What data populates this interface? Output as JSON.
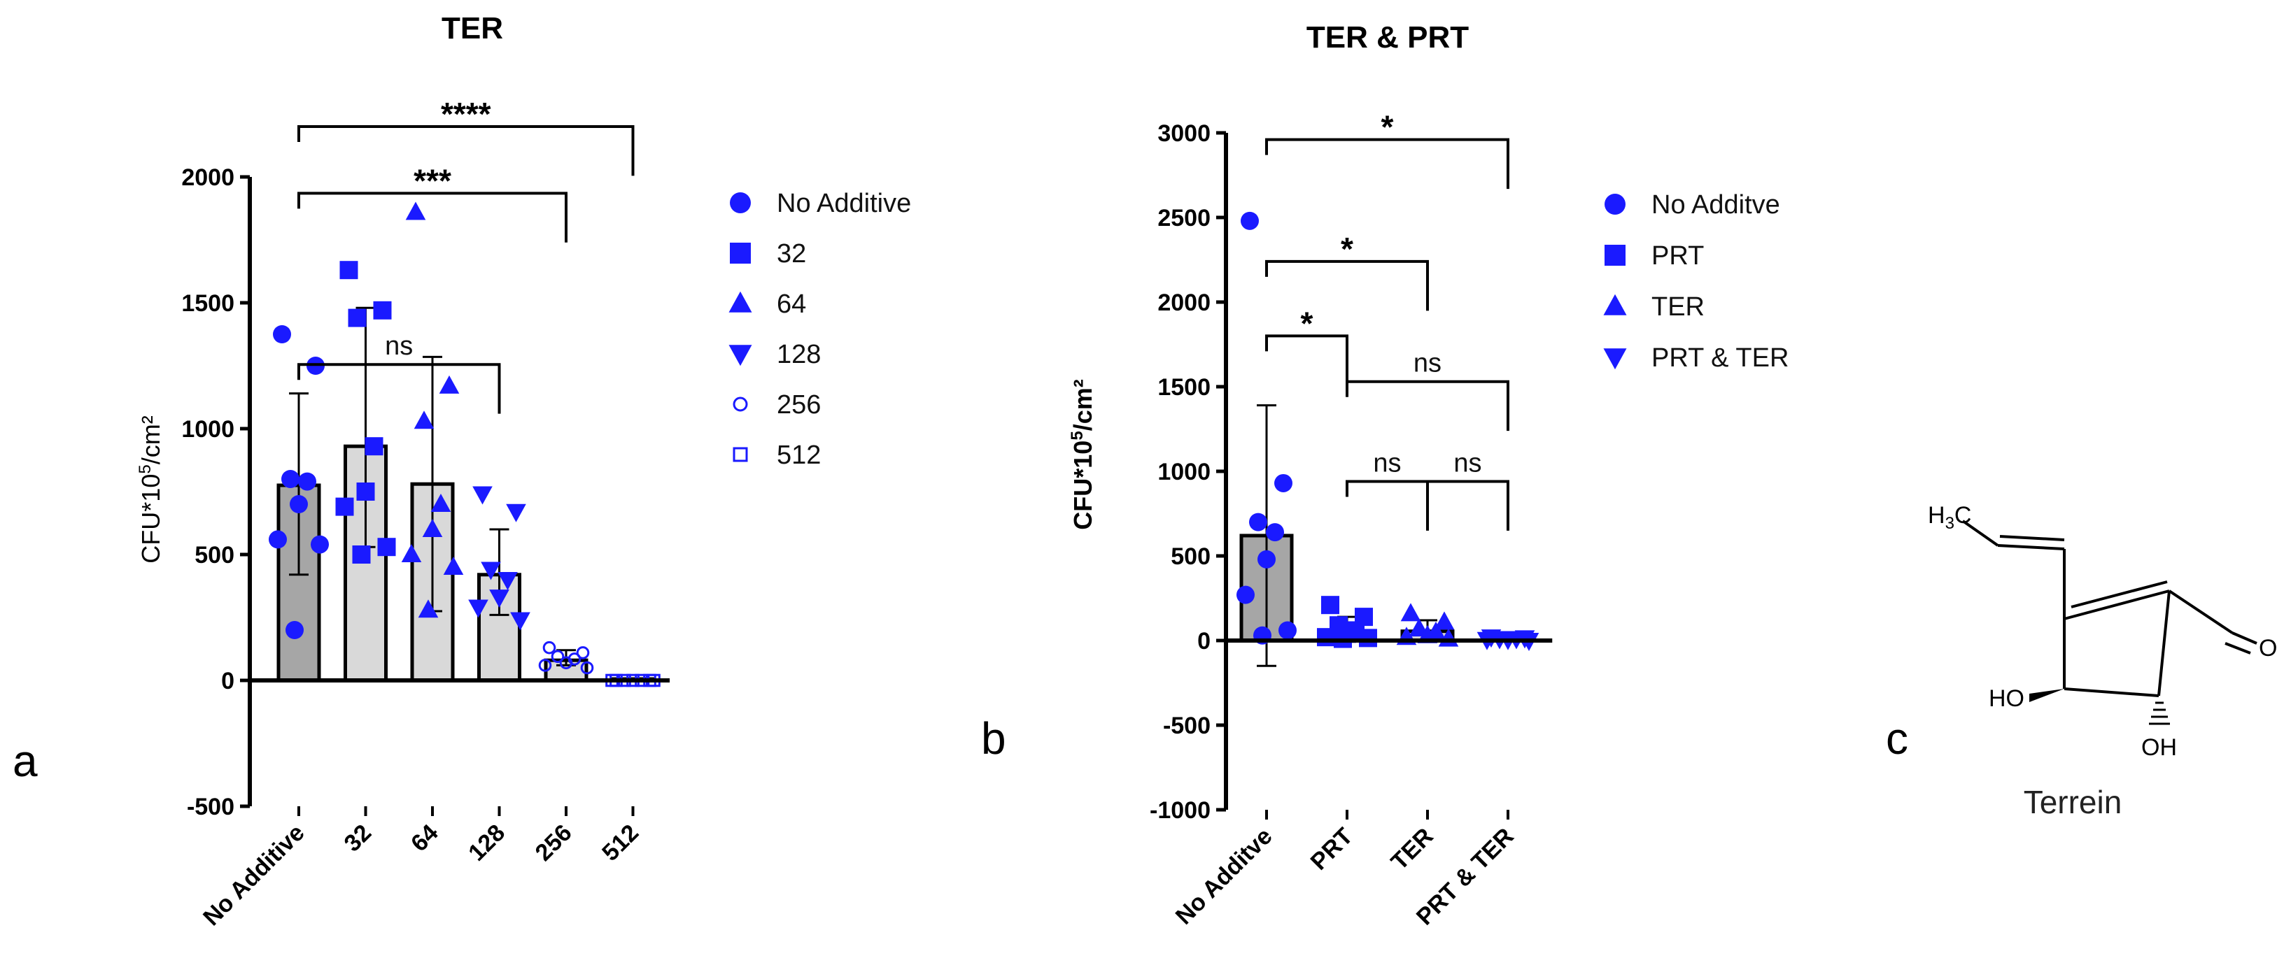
{
  "panel_labels": {
    "a": "a",
    "b": "b",
    "c": "c"
  },
  "colors": {
    "marker": "#1a1aff",
    "bar_control": "#a6a6a6",
    "bar_other": "#d9d9d9",
    "line": "#000000"
  },
  "chart_data": [
    {
      "id": "a",
      "type": "bar",
      "title": "TER",
      "ylabel_html_parts": [
        "CFU*10",
        "5",
        "/cm²"
      ],
      "ylim": [
        -500,
        2000
      ],
      "yticks": [
        "-500",
        "0",
        "500",
        "1000",
        "1500",
        "2000"
      ],
      "ytick_values": [
        -500,
        0,
        500,
        1000,
        1500,
        2000
      ],
      "categories": [
        "No Additive",
        "32",
        "64",
        "128",
        "256",
        "512"
      ],
      "means": [
        775,
        930,
        780,
        420,
        80,
        0
      ],
      "errors": [
        [
          420,
          1140
        ],
        [
          530,
          1480
        ],
        [
          275,
          1285
        ],
        [
          260,
          600
        ],
        [
          60,
          120
        ],
        [
          0,
          0
        ]
      ],
      "bar_fills": [
        "control",
        "other",
        "other",
        "other",
        "other",
        "other"
      ],
      "points": [
        [
          1375,
          1250,
          800,
          790,
          700,
          560,
          540,
          200
        ],
        [
          1630,
          1470,
          1440,
          930,
          750,
          690,
          530,
          500
        ],
        [
          1860,
          1170,
          1030,
          700,
          600,
          500,
          450,
          280
        ],
        [
          740,
          670,
          440,
          400,
          330,
          290,
          240
        ],
        [
          130,
          110,
          95,
          85,
          70,
          60,
          50
        ],
        [
          0,
          0,
          0,
          0,
          0,
          0,
          0
        ]
      ],
      "markers": [
        "circle",
        "square",
        "triangle-up",
        "triangle-down",
        "open-circle",
        "open-square"
      ],
      "legend": [
        "No Additive",
        "32",
        "64",
        "128",
        "256",
        "512"
      ],
      "comparisons": [
        {
          "from": 0,
          "to": 5,
          "level": 2200,
          "label": "****"
        },
        {
          "from": 0,
          "to": 4,
          "level": 1935,
          "label": "***"
        },
        {
          "from": 0,
          "to": 3,
          "level": 1255,
          "label": "ns"
        }
      ]
    },
    {
      "id": "b",
      "type": "bar",
      "title": "TER & PRT",
      "ylabel_html_parts": [
        "CFU*10",
        "5",
        "/cm²"
      ],
      "ylim": [
        -1000,
        3000
      ],
      "yticks": [
        "-1000",
        "-500",
        "0",
        "500",
        "1000",
        "1500",
        "2000",
        "2500",
        "3000"
      ],
      "ytick_values": [
        -1000,
        -500,
        0,
        500,
        1000,
        1500,
        2000,
        2500,
        3000
      ],
      "categories": [
        "No Additve",
        "PRT",
        "TER",
        "PRT & TER"
      ],
      "means": [
        620,
        55,
        55,
        10
      ],
      "errors": [
        [
          -150,
          1390
        ],
        [
          0,
          140
        ],
        [
          0,
          120
        ],
        [
          0,
          20
        ]
      ],
      "bar_fills": [
        "control",
        "other",
        "other",
        "other"
      ],
      "points": [
        [
          2480,
          930,
          700,
          640,
          480,
          270,
          60,
          30
        ],
        [
          210,
          140,
          90,
          60,
          40,
          20,
          15,
          10
        ],
        [
          160,
          110,
          70,
          50,
          30,
          20,
          10
        ],
        [
          20,
          15,
          10,
          10,
          5,
          5,
          0
        ]
      ],
      "markers": [
        "circle",
        "square",
        "triangle-up",
        "triangle-down"
      ],
      "legend": [
        "No Additve",
        "PRT",
        "TER",
        "PRT & TER"
      ],
      "comparisons": [
        {
          "from": 0,
          "to": 3,
          "level": 2960,
          "label": "*"
        },
        {
          "from": 0,
          "to": 2,
          "level": 2240,
          "label": "*"
        },
        {
          "from": 0,
          "to": 1,
          "level": 1800,
          "label": "*"
        },
        {
          "from": 1,
          "to": 3,
          "level": 1530,
          "label": "ns"
        },
        {
          "from": 1,
          "to": 2,
          "level": 940,
          "label": "ns"
        },
        {
          "from": 2,
          "to": 3,
          "level": 940,
          "label": "ns"
        }
      ]
    }
  ],
  "structure": {
    "methyl_label": {
      "main": "H",
      "sub": "3",
      "tail": "C"
    },
    "ketone_label": "O",
    "hydroxy_left": "HO",
    "hydroxy_bottom": "OH",
    "name": "Terrein"
  }
}
